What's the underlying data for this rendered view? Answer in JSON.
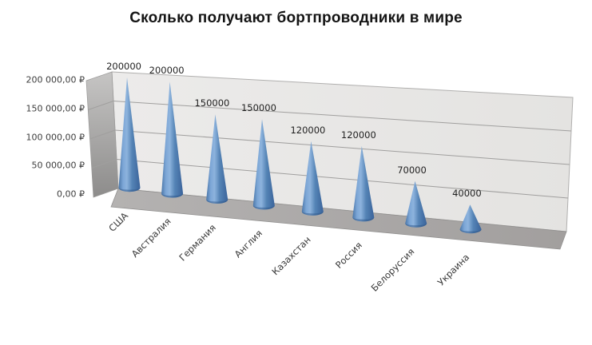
{
  "title": "Сколько получают бортпроводники в мире",
  "chart_data": {
    "type": "bar",
    "shape": "3d-cone",
    "title": "Сколько получают бортпроводники в мире",
    "categories": [
      "США",
      "Австралия",
      "Германия",
      "Англия",
      "Казахстан",
      "Россия",
      "Белоруссия",
      "Украина"
    ],
    "values": [
      200000,
      200000,
      150000,
      150000,
      120000,
      120000,
      70000,
      40000
    ],
    "data_labels": [
      "200000",
      "200000",
      "150000",
      "150000",
      "120000",
      "120000",
      "70000",
      "40000"
    ],
    "y_tick_labels": [
      "0,00 ₽",
      "50 000,00 ₽",
      "100 000,00 ₽",
      "150 000,00 ₽",
      "200 000,00 ₽"
    ],
    "ylim": [
      0,
      200000
    ],
    "grid": true,
    "legend": false,
    "xlabel": "",
    "ylabel": "",
    "colors": {
      "cone_gradient": [
        "#4a76a8",
        "#7ca6d6",
        "#8db3dd",
        "#5584b6",
        "#3a639a"
      ],
      "cone_rim": "#2d5687",
      "back_wall_gradient": [
        "#ecebea",
        "#e4e3e1"
      ],
      "left_wall_gradient": [
        "#c6c5c4",
        "#8d8c8b"
      ],
      "floor_gradient": [
        "#b4b2b1",
        "#a29f9e"
      ],
      "gridline": "#a09f9e",
      "wall_edge": "#9b9a99",
      "title_color": "#141414",
      "data_label_color": "#1f1f1f",
      "axis_label_color": "#3d3d3d",
      "background": "#ffffff"
    }
  }
}
